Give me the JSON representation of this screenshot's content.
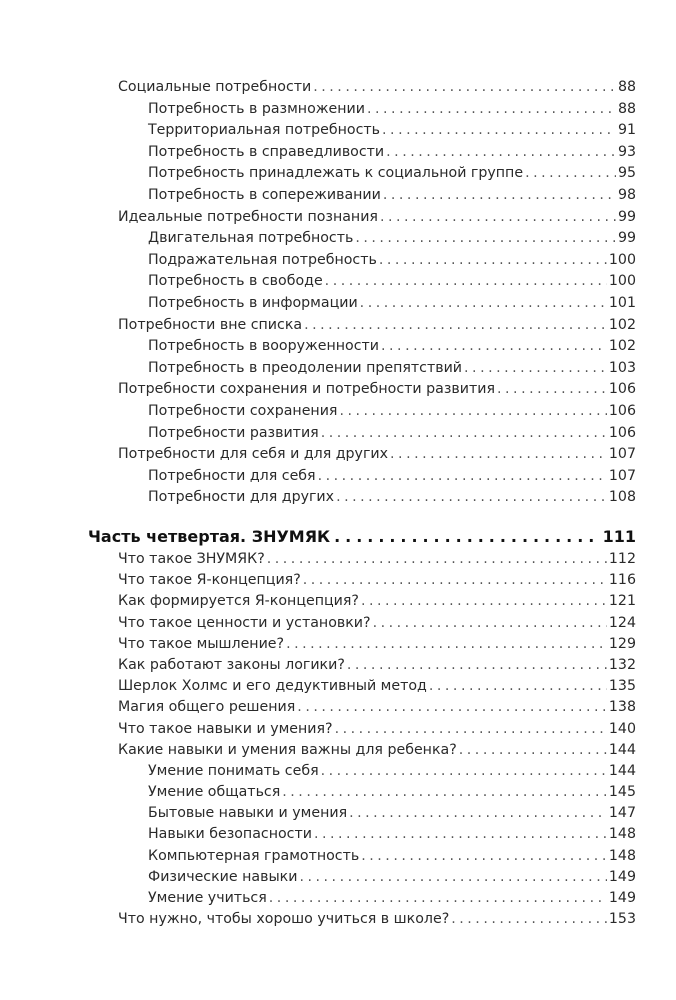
{
  "section_a": [
    {
      "level": 1,
      "title": "Социальные потребности",
      "page": "88"
    },
    {
      "level": 2,
      "title": "Потребность в размножении",
      "page": "88"
    },
    {
      "level": 2,
      "title": "Территориальная потребность",
      "page": "91"
    },
    {
      "level": 2,
      "title": "Потребность в справедливости",
      "page": "93"
    },
    {
      "level": 2,
      "title": "Потребность принадлежать к социальной группе",
      "page": "95"
    },
    {
      "level": 2,
      "title": "Потребность в сопереживании",
      "page": "98"
    },
    {
      "level": 1,
      "title": "Идеальные потребности познания",
      "page": "99"
    },
    {
      "level": 2,
      "title": "Двигательная потребность",
      "page": "99"
    },
    {
      "level": 2,
      "title": "Подражательная потребность",
      "page": "100"
    },
    {
      "level": 2,
      "title": "Потребность в свободе",
      "page": "100"
    },
    {
      "level": 2,
      "title": "Потребность в информации",
      "page": "101"
    },
    {
      "level": 1,
      "title": "Потребности вне списка",
      "page": "102"
    },
    {
      "level": 2,
      "title": "Потребность в вооруженности",
      "page": "102"
    },
    {
      "level": 2,
      "title": "Потребность в преодолении препятствий",
      "page": "103"
    },
    {
      "level": 1,
      "title": "Потребности сохранения и потребности развития",
      "page": "106"
    },
    {
      "level": 2,
      "title": "Потребности сохранения",
      "page": "106"
    },
    {
      "level": 2,
      "title": "Потребности развития",
      "page": "106"
    },
    {
      "level": 1,
      "title": "Потребности для себя и для других",
      "page": "107"
    },
    {
      "level": 2,
      "title": "Потребности для себя",
      "page": "107"
    },
    {
      "level": 2,
      "title": "Потребности для других",
      "page": "108"
    }
  ],
  "part": {
    "title": "Часть четвертая. ЗНУМЯК",
    "page": "111"
  },
  "section_b": [
    {
      "level": 1,
      "title": "Что такое ЗНУМЯК?",
      "page": "112"
    },
    {
      "level": 1,
      "title": "Что такое Я-концепция?",
      "page": "116"
    },
    {
      "level": 1,
      "title": "Как формируется Я-концепция?",
      "page": "121"
    },
    {
      "level": 1,
      "title": "Что такое ценности и установки?",
      "page": "124"
    },
    {
      "level": 1,
      "title": "Что такое мышление?",
      "page": "129"
    },
    {
      "level": 1,
      "title": "Как работают законы логики?",
      "page": "132"
    },
    {
      "level": 1,
      "title": "Шерлок Холмс и его дедуктивный метод",
      "page": "135"
    },
    {
      "level": 1,
      "title": "Магия общего решения",
      "page": "138"
    },
    {
      "level": 1,
      "title": "Что такое навыки и умения?",
      "page": "140"
    },
    {
      "level": 1,
      "title": "Какие навыки и умения важны для ребенка?",
      "page": "144"
    },
    {
      "level": 2,
      "title": "Умение понимать себя",
      "page": "144"
    },
    {
      "level": 2,
      "title": "Умение общаться",
      "page": "145"
    },
    {
      "level": 2,
      "title": "Бытовые навыки и умения",
      "page": "147"
    },
    {
      "level": 2,
      "title": "Навыки безопасности",
      "page": "148"
    },
    {
      "level": 2,
      "title": "Компьютерная грамотность",
      "page": "148"
    },
    {
      "level": 2,
      "title": "Физические навыки",
      "page": "149"
    },
    {
      "level": 2,
      "title": "Умение учиться",
      "page": "149"
    },
    {
      "level": 1,
      "title": "Что нужно, чтобы хорошо учиться в школе?",
      "page": "153"
    }
  ]
}
